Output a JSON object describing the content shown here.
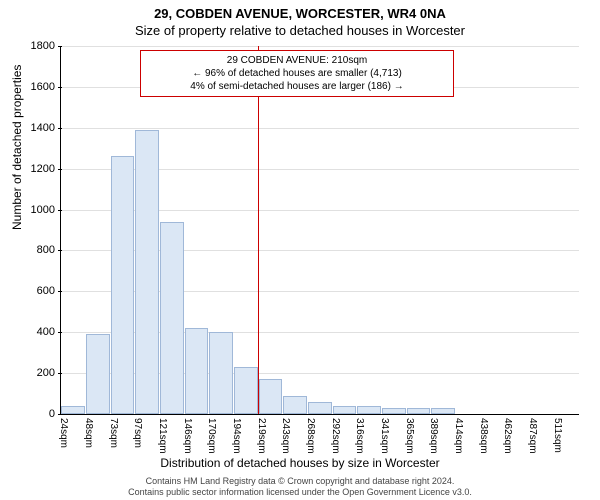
{
  "title_main": "29, COBDEN AVENUE, WORCESTER, WR4 0NA",
  "title_sub": "Size of property relative to detached houses in Worcester",
  "chart": {
    "type": "histogram",
    "ylabel": "Number of detached properties",
    "xlabel": "Distribution of detached houses by size in Worcester",
    "ylim": [
      0,
      1800
    ],
    "ytick_step": 200,
    "yticks": [
      0,
      200,
      400,
      600,
      800,
      1000,
      1200,
      1400,
      1600,
      1800
    ],
    "x_categories": [
      "24sqm",
      "48sqm",
      "73sqm",
      "97sqm",
      "121sqm",
      "146sqm",
      "170sqm",
      "194sqm",
      "219sqm",
      "243sqm",
      "268sqm",
      "292sqm",
      "316sqm",
      "341sqm",
      "365sqm",
      "389sqm",
      "414sqm",
      "438sqm",
      "462sqm",
      "487sqm",
      "511sqm"
    ],
    "values": [
      40,
      390,
      1260,
      1390,
      940,
      420,
      400,
      230,
      170,
      90,
      60,
      40,
      40,
      30,
      30,
      30,
      0,
      0,
      0,
      0,
      0
    ],
    "bar_fill": "#dbe7f5",
    "bar_border": "#a0b8d8",
    "grid_color": "#e0e0e0",
    "background_color": "#ffffff",
    "ref_line": {
      "x_index": 8,
      "color": "#cc0000"
    },
    "title_fontsize": 13,
    "label_fontsize": 12,
    "tick_fontsize": 11
  },
  "annotation": {
    "line1": "29 COBDEN AVENUE: 210sqm",
    "line2": "← 96% of detached houses are smaller (4,713)",
    "line3": "4% of semi-detached houses are larger (186) →",
    "border_color": "#cc0000",
    "fontsize": 10
  },
  "footer": {
    "line1": "Contains HM Land Registry data © Crown copyright and database right 2024.",
    "line2": "Contains public sector information licensed under the Open Government Licence v3.0."
  }
}
